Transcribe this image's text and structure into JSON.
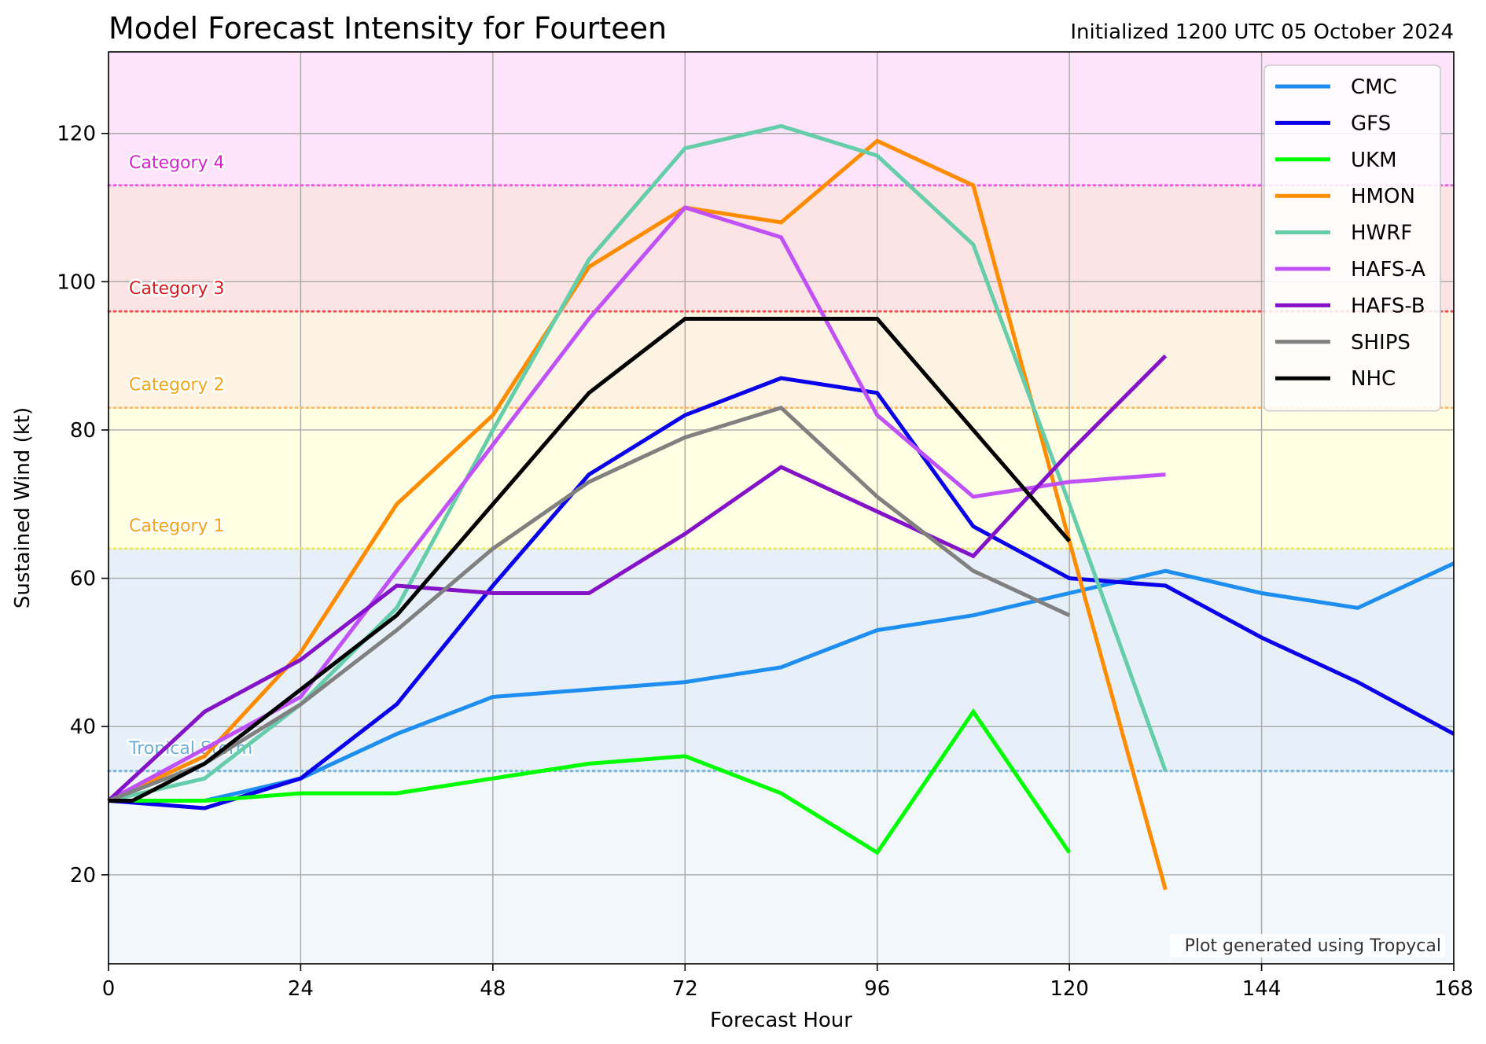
{
  "chart_data": {
    "type": "line",
    "title": "Model Forecast Intensity for Fourteen",
    "subtitle": "Initialized 1200 UTC 05 October 2024",
    "xlabel": "Forecast Hour",
    "ylabel": "Sustained Wind (kt)",
    "xlim": [
      0,
      168
    ],
    "ylim": [
      8,
      131
    ],
    "xticks": [
      0,
      24,
      48,
      72,
      96,
      120,
      144,
      168
    ],
    "yticks": [
      20,
      40,
      60,
      80,
      100,
      120
    ],
    "grid": true,
    "legend": "top-right",
    "credit": "Plot generated using Tropycal",
    "categories": [
      {
        "name": "Tropical Storm",
        "threshold": 34,
        "color": "#6baed6",
        "band_from": 8,
        "band_to": 34,
        "band_color": "#f2f7fb"
      },
      {
        "name": "",
        "threshold": 64,
        "color": "#e8e85a",
        "band_from": 34,
        "band_to": 64,
        "band_color": "#e7f0f8"
      },
      {
        "name": "Category 1",
        "threshold": 64,
        "color": "#e8e85a",
        "band_from": 64,
        "band_to": 83,
        "band_color": "#ffffe4",
        "label_color": "#f2a51c"
      },
      {
        "name": "Category 2",
        "threshold": 83,
        "color": "#fdb863",
        "band_from": 83,
        "band_to": 96,
        "band_color": "#fdf3e3",
        "label_color": "#f2a51c"
      },
      {
        "name": "Category 3",
        "threshold": 96,
        "color": "#e6434b",
        "band_from": 96,
        "band_to": 113,
        "band_color": "#fbe4e3",
        "label_color": "#d7191c"
      },
      {
        "name": "Category 4",
        "threshold": 113,
        "color": "#e84fe0",
        "band_from": 113,
        "band_to": 131,
        "band_color": "#fde4fb",
        "label_color": "#d81fd1"
      }
    ],
    "series": [
      {
        "name": "CMC",
        "color": "#1e8ff0",
        "x": [
          0,
          12,
          24,
          36,
          48,
          60,
          72,
          84,
          96,
          108,
          120,
          132,
          144,
          156,
          168
        ],
        "values": [
          30,
          30,
          33,
          39,
          44,
          45,
          46,
          48,
          53,
          55,
          58,
          61,
          58,
          56,
          62
        ]
      },
      {
        "name": "GFS",
        "color": "#0b00ea",
        "x": [
          0,
          12,
          24,
          36,
          48,
          60,
          72,
          84,
          96,
          108,
          120,
          132,
          144,
          156,
          168
        ],
        "values": [
          30,
          29,
          33,
          43,
          59,
          74,
          82,
          87,
          85,
          67,
          60,
          59,
          52,
          46,
          39
        ]
      },
      {
        "name": "UKM",
        "color": "#00ff00",
        "x": [
          0,
          12,
          24,
          36,
          48,
          60,
          72,
          84,
          96,
          108,
          120
        ],
        "values": [
          30,
          30,
          31,
          31,
          33,
          35,
          36,
          31,
          23,
          42,
          23
        ]
      },
      {
        "name": "HMON",
        "color": "#ff8c00",
        "x": [
          0,
          12,
          24,
          36,
          48,
          60,
          72,
          84,
          96,
          108,
          120,
          132
        ],
        "values": [
          30,
          36,
          50,
          70,
          82,
          102,
          110,
          108,
          119,
          113,
          65,
          18
        ]
      },
      {
        "name": "HWRF",
        "color": "#66cdaa",
        "x": [
          0,
          12,
          24,
          36,
          48,
          60,
          72,
          84,
          96,
          108,
          120,
          132
        ],
        "values": [
          30,
          33,
          43,
          56,
          80,
          103,
          118,
          121,
          117,
          105,
          70,
          34
        ]
      },
      {
        "name": "HAFS-A",
        "color": "#c050f8",
        "x": [
          0,
          12,
          24,
          36,
          48,
          60,
          72,
          84,
          96,
          108,
          120,
          132
        ],
        "values": [
          30,
          37,
          44,
          61,
          78,
          95,
          110,
          106,
          82,
          71,
          73,
          74
        ]
      },
      {
        "name": "HAFS-B",
        "color": "#8413c8",
        "x": [
          0,
          12,
          24,
          36,
          48,
          60,
          72,
          84,
          96,
          108,
          120,
          132
        ],
        "values": [
          30,
          42,
          49,
          59,
          58,
          58,
          66,
          75,
          69,
          63,
          77,
          90
        ]
      },
      {
        "name": "SHIPS",
        "color": "#808080",
        "x": [
          0,
          12,
          24,
          36,
          48,
          60,
          72,
          84,
          96,
          108,
          120
        ],
        "values": [
          30,
          35,
          43,
          53,
          64,
          73,
          79,
          83,
          71,
          61,
          55
        ]
      },
      {
        "name": "NHC",
        "color": "#000000",
        "x": [
          0,
          3,
          12,
          24,
          36,
          48,
          60,
          72,
          84,
          96,
          120
        ],
        "values": [
          30,
          30,
          35,
          45,
          55,
          70,
          85,
          95,
          95,
          95,
          65
        ]
      }
    ]
  }
}
